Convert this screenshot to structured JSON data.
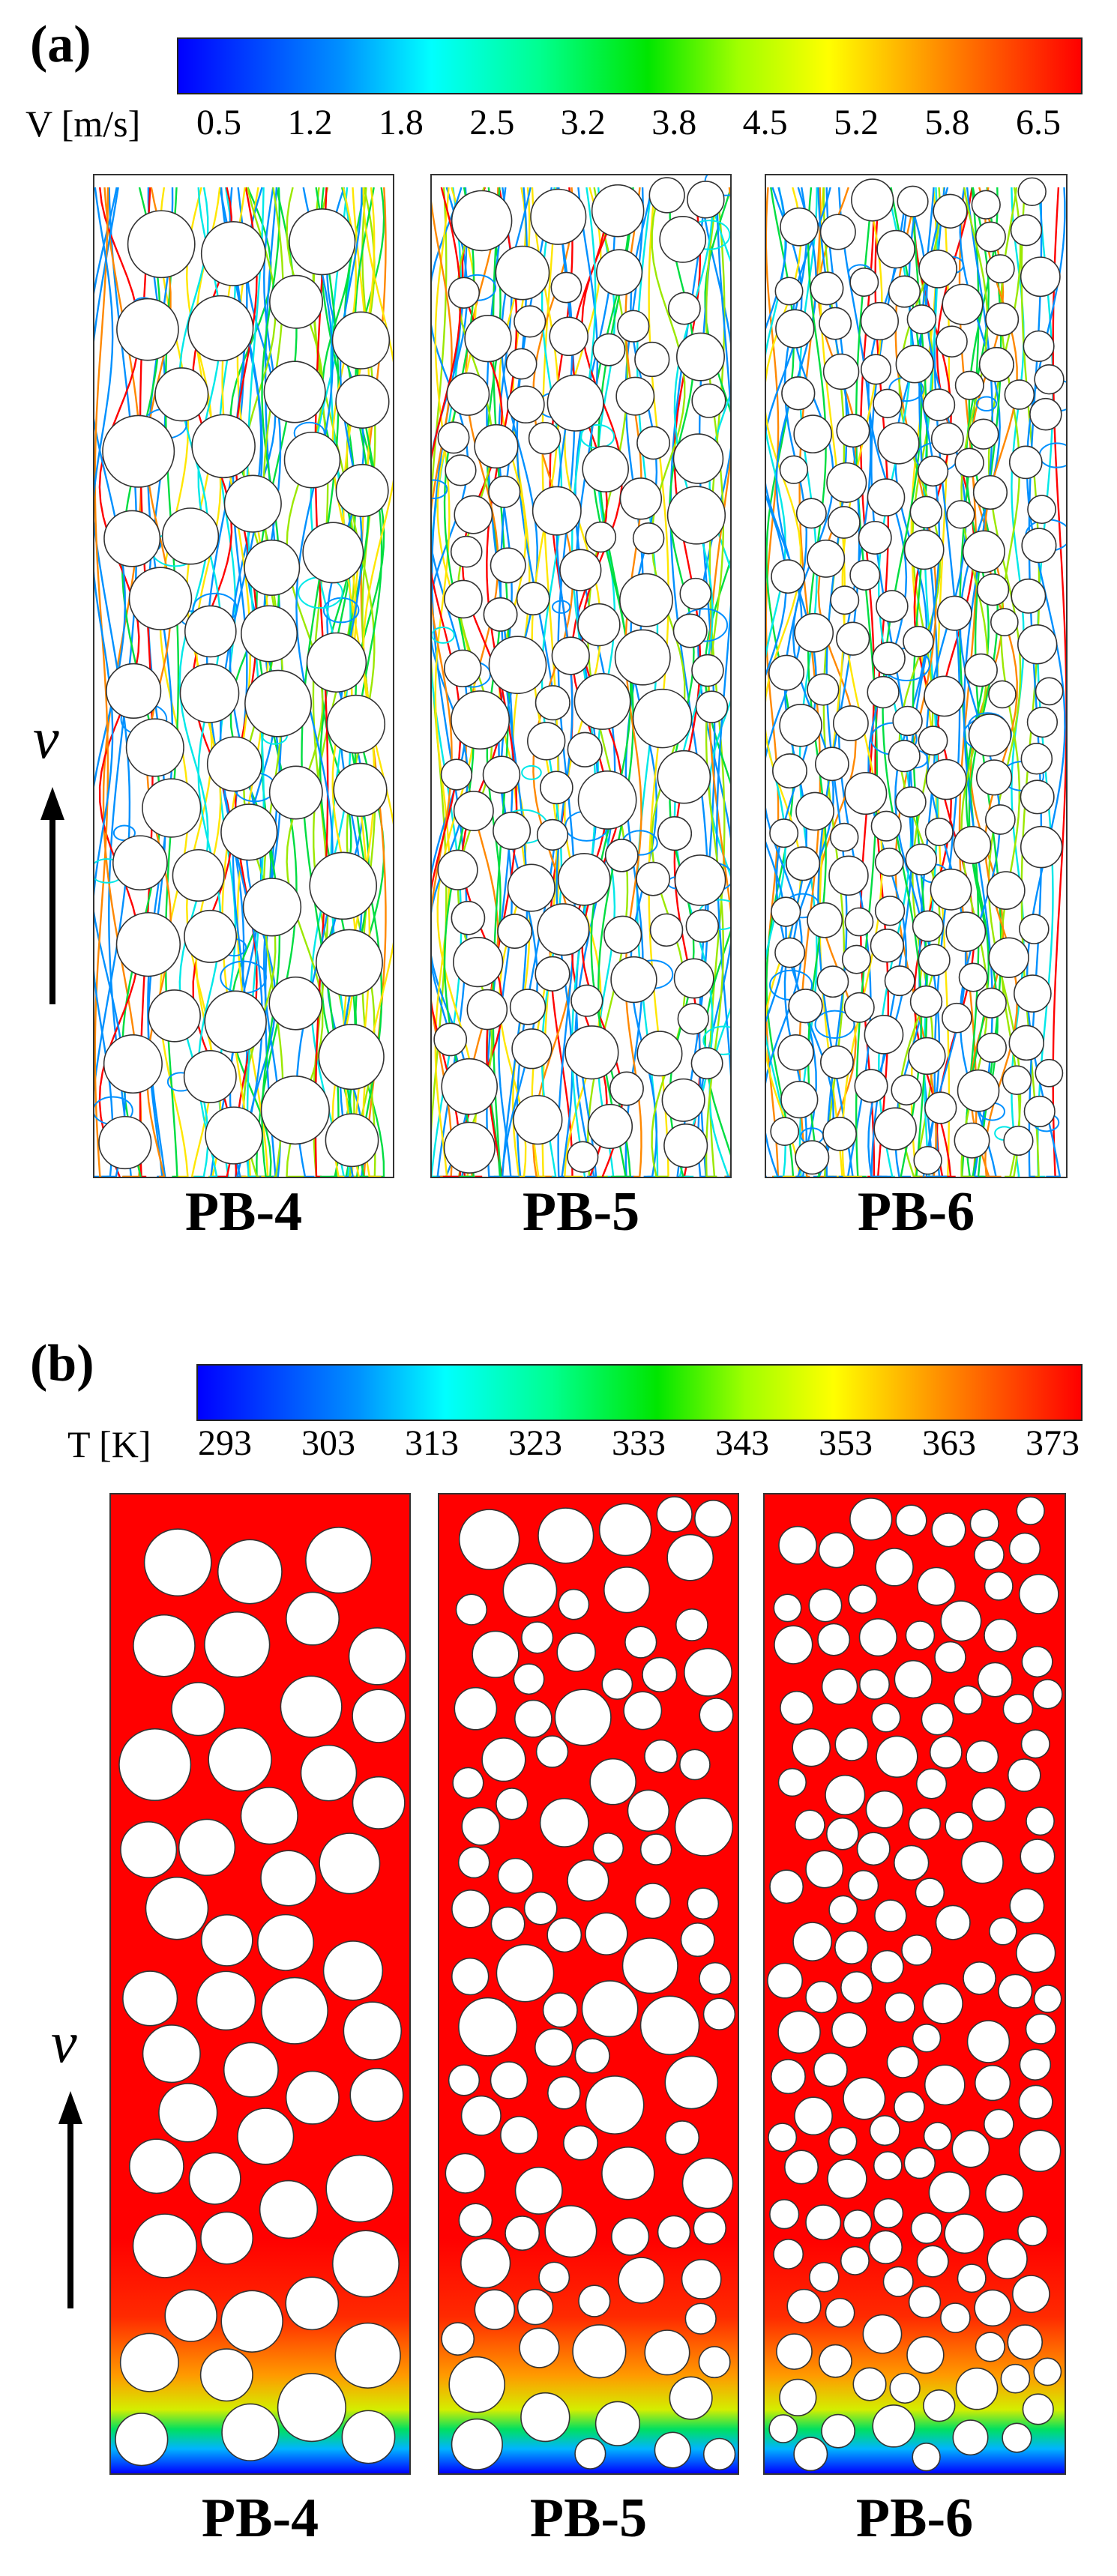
{
  "panel_a": {
    "label": "(a)",
    "colorbar_title": "V [m/s]",
    "colorbar_ticks": [
      "0.5",
      "1.2",
      "1.8",
      "2.5",
      "3.2",
      "3.8",
      "4.5",
      "5.2",
      "5.8",
      "6.5"
    ],
    "velocity_symbol": "v",
    "cases": [
      "PB-4",
      "PB-5",
      "PB-6"
    ]
  },
  "panel_b": {
    "label": "(b)",
    "colorbar_title": "T [K]",
    "colorbar_ticks": [
      "293",
      "303",
      "313",
      "323",
      "333",
      "343",
      "353",
      "363",
      "373"
    ],
    "velocity_symbol": "v",
    "cases": [
      "PB-4",
      "PB-5",
      "PB-6"
    ]
  },
  "colors": {
    "hot": "#ff0000",
    "cold": "#0000ff",
    "particle": "#ffffff"
  }
}
